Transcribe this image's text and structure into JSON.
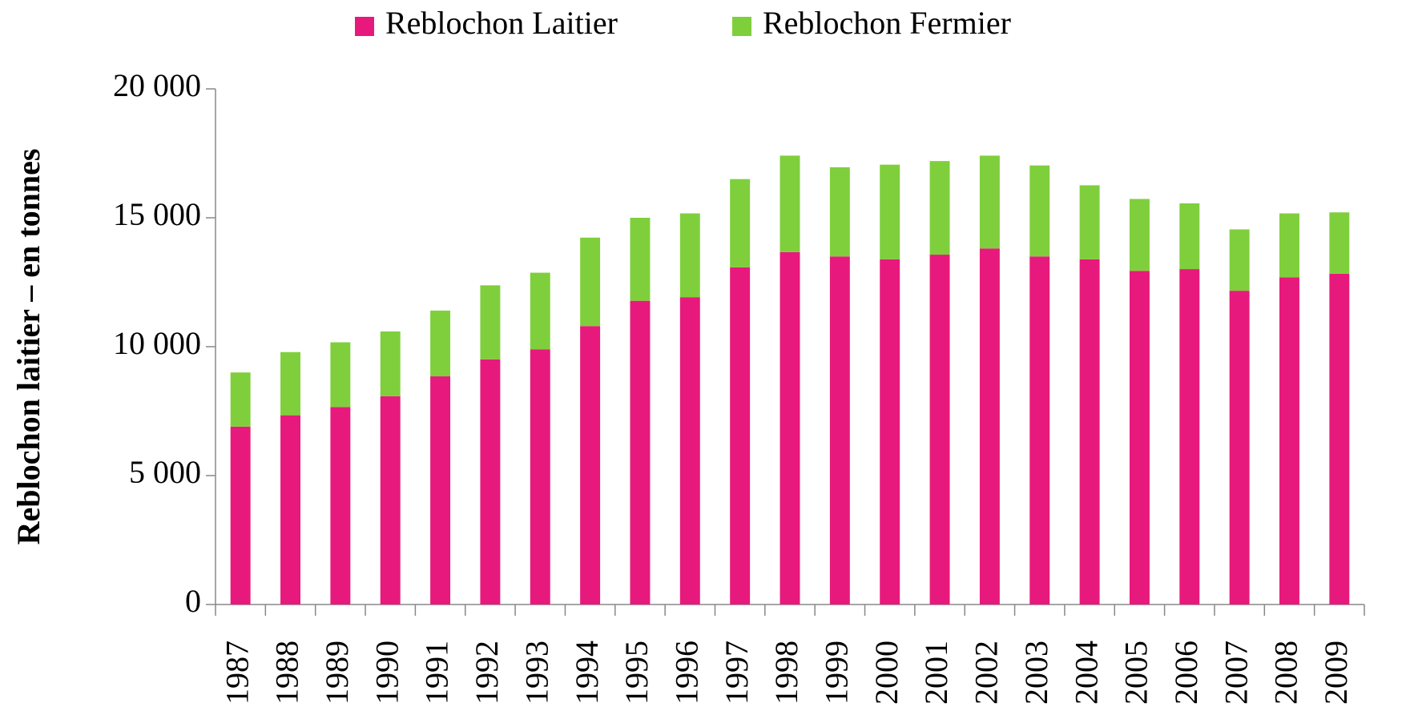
{
  "chart_data": {
    "type": "stacked_bar",
    "y_label": "Reblochon laitier – en tonnes",
    "categories": [
      "1987",
      "1988",
      "1989",
      "1990",
      "1991",
      "1992",
      "1993",
      "1994",
      "1995",
      "1996",
      "1997",
      "1998",
      "1999",
      "2000",
      "2001",
      "2002",
      "2003",
      "2004",
      "2005",
      "2006",
      "2007",
      "2008",
      "2009"
    ],
    "series": [
      {
        "name": "Reblochon Laitier",
        "color": "#e8197c",
        "values": [
          6900,
          7340,
          7660,
          8080,
          8850,
          9510,
          9900,
          10800,
          11780,
          11920,
          13080,
          13670,
          13500,
          13390,
          13570,
          13810,
          13500,
          13390,
          12940,
          13010,
          12170,
          12690,
          12830
        ]
      },
      {
        "name": "Reblochon Fermier",
        "color": "#7fcf3c",
        "values": [
          2100,
          2450,
          2510,
          2510,
          2550,
          2870,
          2970,
          3430,
          3220,
          3250,
          3420,
          3740,
          3460,
          3670,
          3630,
          3600,
          3530,
          2870,
          2790,
          2550,
          2380,
          2480,
          2380
        ]
      }
    ],
    "ylim": [
      0,
      20000
    ],
    "yticks": [
      0,
      {
        "value": 5000,
        "label": "5 000"
      },
      {
        "value": 10000,
        "label": "10 000"
      },
      {
        "value": 15000,
        "label": "15 000"
      },
      {
        "value": 20000,
        "label": "20 000"
      }
    ],
    "legend": "top"
  }
}
